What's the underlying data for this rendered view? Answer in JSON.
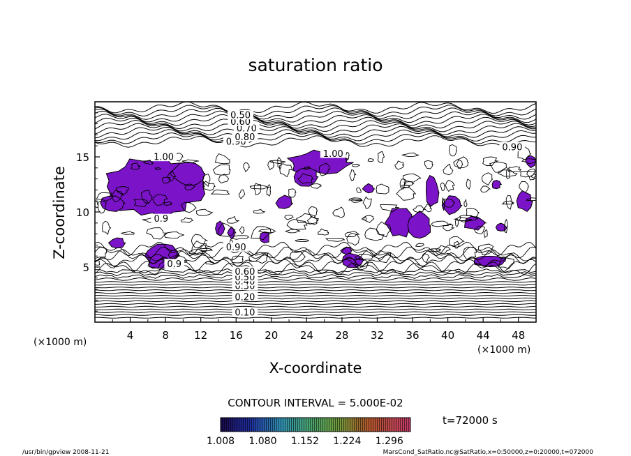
{
  "chart_data": {
    "type": "contour",
    "title": "saturation ratio",
    "xlabel": "X-coordinate",
    "ylabel": "Z-coordinate",
    "x_unit_left": "(×1000 m)",
    "x_unit_right": "(×1000 m)",
    "xlim": [
      0,
      50
    ],
    "ylim": [
      0,
      20
    ],
    "x_ticks": [
      4,
      8,
      12,
      16,
      20,
      24,
      28,
      32,
      36,
      40,
      44,
      48
    ],
    "y_ticks": [
      5,
      10,
      15
    ],
    "contour_interval_text": "CONTOUR INTERVAL = 5.000E-02",
    "contour_labels": [
      {
        "text": "0.10",
        "x": 17.0,
        "y": 0.7
      },
      {
        "text": "0.20",
        "x": 17.0,
        "y": 2.1
      },
      {
        "text": "0.30",
        "x": 17.0,
        "y": 3.1
      },
      {
        "text": "0.40",
        "x": 17.0,
        "y": 3.5
      },
      {
        "text": "0.50",
        "x": 17.0,
        "y": 3.9
      },
      {
        "text": "0.60",
        "x": 17.0,
        "y": 4.4
      },
      {
        "text": "0.90",
        "x": 16.0,
        "y": 6.6
      },
      {
        "text": "0.90",
        "x": 16.0,
        "y": 16.2
      },
      {
        "text": "0.80",
        "x": 17.0,
        "y": 16.6
      },
      {
        "text": "0.70",
        "x": 17.2,
        "y": 17.4
      },
      {
        "text": "0.60",
        "x": 16.5,
        "y": 18.0
      },
      {
        "text": "0.50",
        "x": 16.5,
        "y": 18.6
      },
      {
        "text": "1.00",
        "x": 7.8,
        "y": 14.8
      },
      {
        "text": "1.00",
        "x": 27.0,
        "y": 15.1
      },
      {
        "text": "0.90",
        "x": 47.3,
        "y": 15.7
      },
      {
        "text": "0.9",
        "x": 7.5,
        "y": 9.2
      },
      {
        "text": "0.9",
        "x": 9.0,
        "y": 5.1
      }
    ],
    "colorbar": {
      "ticks": [
        "1.008",
        "1.080",
        "1.152",
        "1.224",
        "1.296"
      ],
      "range": [
        1.008,
        1.332
      ]
    },
    "supersaturated_color": "#7b14c8",
    "time_label": "t=72000 s"
  },
  "footer": {
    "left": "/usr/bin/gpview  2008-11-21",
    "right": "MarsCond_SatRatio.nc@SatRatio,x=0:50000,z=0:20000,t=072000"
  }
}
